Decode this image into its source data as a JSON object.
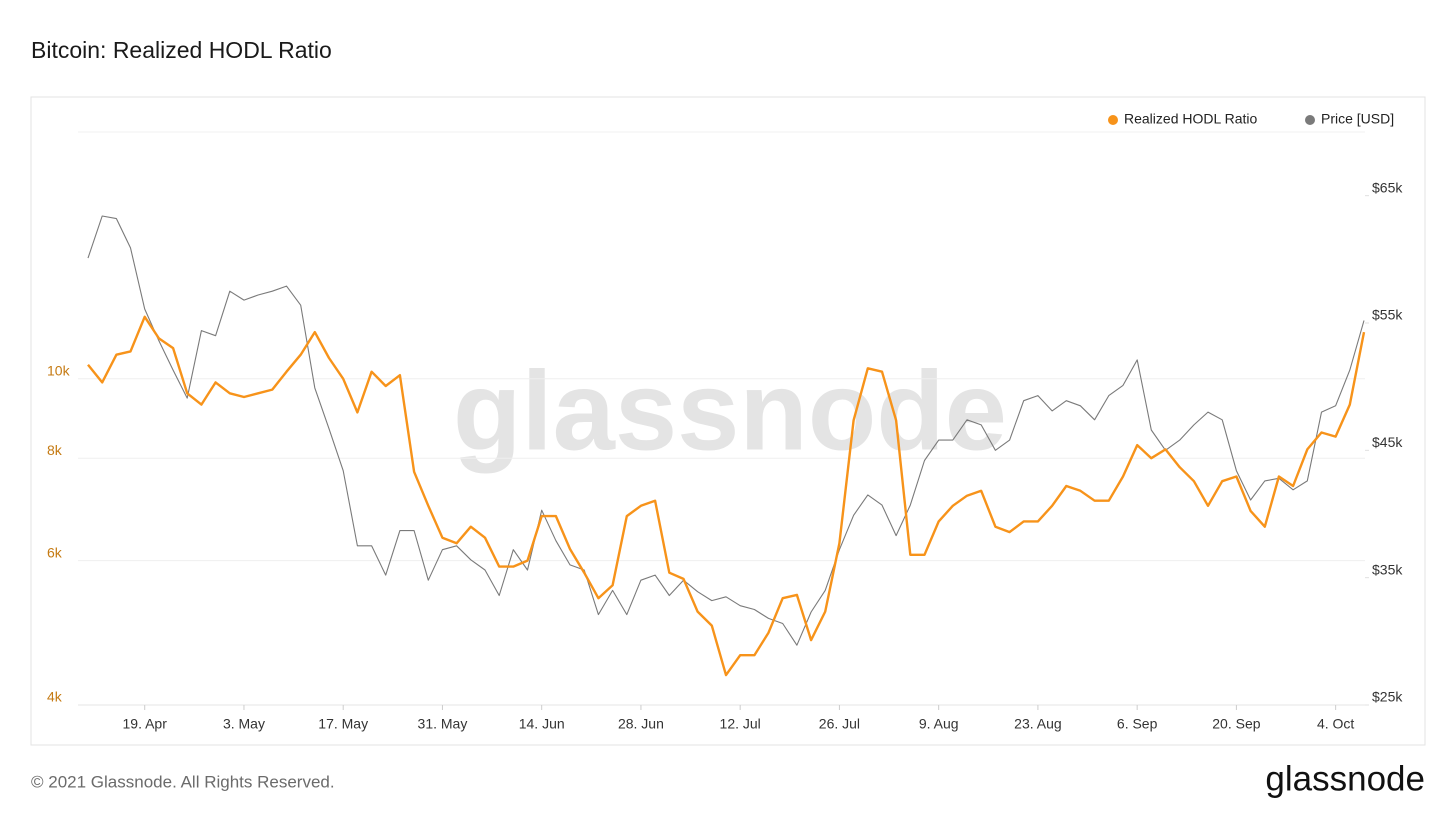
{
  "chart_data": {
    "type": "line",
    "title": "Bitcoin: Realized HODL Ratio",
    "watermark": "glassnode",
    "x": [
      "11. Apr",
      "13. Apr",
      "15. Apr",
      "17. Apr",
      "19. Apr",
      "21. Apr",
      "23. Apr",
      "25. Apr",
      "27. Apr",
      "29. Apr",
      "1. May",
      "3. May",
      "5. May",
      "7. May",
      "9. May",
      "11. May",
      "13. May",
      "15. May",
      "17. May",
      "19. May",
      "21. May",
      "23. May",
      "25. May",
      "27. May",
      "29. May",
      "31. May",
      "2. Jun",
      "4. Jun",
      "6. Jun",
      "8. Jun",
      "10. Jun",
      "12. Jun",
      "14. Jun",
      "16. Jun",
      "18. Jun",
      "20. Jun",
      "22. Jun",
      "24. Jun",
      "26. Jun",
      "28. Jun",
      "30. Jun",
      "2. Jul",
      "4. Jul",
      "6. Jul",
      "8. Jul",
      "10. Jul",
      "12. Jul",
      "14. Jul",
      "16. Jul",
      "18. Jul",
      "20. Jul",
      "22. Jul",
      "24. Jul",
      "26. Jul",
      "28. Jul",
      "30. Jul",
      "1. Aug",
      "3. Aug",
      "5. Aug",
      "7. Aug",
      "9. Aug",
      "11. Aug",
      "13. Aug",
      "15. Aug",
      "17. Aug",
      "19. Aug",
      "21. Aug",
      "23. Aug",
      "25. Aug",
      "27. Aug",
      "29. Aug",
      "31. Aug",
      "2. Sep",
      "4. Sep",
      "6. Sep",
      "8. Sep",
      "10. Sep",
      "12. Sep",
      "14. Sep",
      "16. Sep",
      "18. Sep",
      "20. Sep",
      "22. Sep",
      "24. Sep",
      "26. Sep",
      "28. Sep",
      "30. Sep",
      "2. Oct",
      "4. Oct",
      "6. Oct",
      "8. Oct"
    ],
    "xticks": [
      "19. Apr",
      "3. May",
      "17. May",
      "31. May",
      "14. Jun",
      "28. Jun",
      "12. Jul",
      "26. Jul",
      "9. Aug",
      "23. Aug",
      "6. Sep",
      "20. Sep",
      "4. Oct"
    ],
    "series": [
      {
        "name": "Realized HODL Ratio",
        "color": "#f7931a",
        "axis": "y",
        "values": [
          10400,
          9900,
          10700,
          10800,
          11900,
          11200,
          10900,
          9600,
          9300,
          9900,
          9600,
          9500,
          9600,
          9700,
          10200,
          10700,
          11400,
          10600,
          10000,
          9100,
          10200,
          9800,
          10100,
          7700,
          7000,
          6400,
          6300,
          6600,
          6400,
          5900,
          5900,
          6000,
          6800,
          6800,
          6200,
          5800,
          5400,
          5600,
          6800,
          7000,
          7100,
          5800,
          5700,
          5200,
          5000,
          4350,
          4600,
          4600,
          4900,
          5400,
          5450,
          4800,
          5200,
          6300,
          8900,
          10300,
          10200,
          8900,
          6100,
          6100,
          6700,
          7000,
          7200,
          7300,
          6600,
          6500,
          6700,
          6700,
          7000,
          7400,
          7300,
          7100,
          7100,
          7600,
          8300,
          8000,
          8200,
          7800,
          7500,
          7000,
          7500,
          7600,
          6900,
          6600,
          7600,
          7400,
          8200,
          8600,
          8500,
          9300,
          11400
        ]
      },
      {
        "name": "Price [USD]",
        "color": "#7a7a7a",
        "axis": "y2",
        "values": [
          60100,
          63400,
          63200,
          60900,
          56100,
          53600,
          51300,
          49100,
          54400,
          54000,
          57500,
          56800,
          57200,
          57500,
          57900,
          56400,
          49900,
          46700,
          43400,
          37500,
          37500,
          35200,
          38700,
          38700,
          34800,
          37200,
          37500,
          36400,
          35600,
          33600,
          37200,
          35600,
          40300,
          37900,
          36000,
          35600,
          32100,
          34000,
          32100,
          34800,
          35200,
          33600,
          34800,
          33900,
          33200,
          33500,
          32800,
          32500,
          31800,
          31400,
          29700,
          32300,
          34000,
          37200,
          39900,
          41500,
          40700,
          38300,
          40700,
          44200,
          45800,
          45800,
          47400,
          47000,
          45000,
          45800,
          48900,
          49300,
          48100,
          48900,
          48500,
          47400,
          49300,
          50100,
          52100,
          46600,
          45000,
          45800,
          47000,
          48000,
          47400,
          43400,
          41100,
          42600,
          42800,
          41900,
          42600,
          48000,
          48500,
          51300,
          55200
        ]
      }
    ],
    "ylog": true,
    "ylim": [
      4000,
      20000
    ],
    "yticks": [
      {
        "value": 4000,
        "label": "4k"
      },
      {
        "value": 6000,
        "label": "6k"
      },
      {
        "value": 8000,
        "label": "8k"
      },
      {
        "value": 10000,
        "label": "10k"
      }
    ],
    "y2lim": [
      25000,
      70000
    ],
    "y2ticks": [
      {
        "value": 25000,
        "label": "$25k"
      },
      {
        "value": 35000,
        "label": "$35k"
      },
      {
        "value": 45000,
        "label": "$45k"
      },
      {
        "value": 55000,
        "label": "$55k"
      },
      {
        "value": 65000,
        "label": "$65k"
      }
    ],
    "grid": true,
    "legend": "top-right"
  },
  "footer": "© 2021 Glassnode. All Rights Reserved.",
  "brand": "glassnode"
}
